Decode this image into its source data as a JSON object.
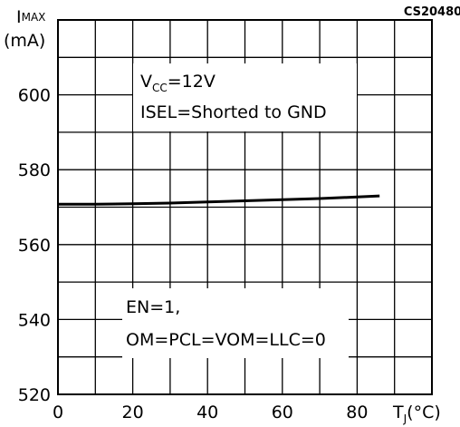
{
  "chart_data": {
    "type": "line",
    "figure_code": "CS20480",
    "ylabel": {
      "main": "I",
      "sub": "MAX",
      "unit": "(mA)"
    },
    "xlabel": {
      "main": "T",
      "sub": "J",
      "unit": "(°C)"
    },
    "xlim": [
      0,
      100
    ],
    "ylim": [
      520,
      620
    ],
    "x_ticks": [
      0,
      20,
      40,
      60,
      80
    ],
    "y_ticks": [
      520,
      540,
      560,
      580,
      600
    ],
    "x_tick_labels": [
      "0",
      "20",
      "40",
      "60",
      "80"
    ],
    "y_tick_labels": [
      "520",
      "540",
      "560",
      "580",
      "600"
    ],
    "grid": true,
    "grid_step_x": 10,
    "grid_step_y": 10,
    "series": [
      {
        "x": [
          0,
          10,
          20,
          30,
          40,
          50,
          60,
          70,
          80,
          86
        ],
        "values": [
          570.8,
          570.8,
          570.9,
          571.1,
          571.4,
          571.7,
          572.0,
          572.3,
          572.7,
          573.0
        ]
      }
    ],
    "annotations": [
      {
        "id": "vcc",
        "lines": [
          [
            {
              "t": "V"
            },
            {
              "t": "CC",
              "sub": true
            },
            {
              "t": "=12V"
            }
          ],
          [
            {
              "t": "ISEL=Shorted to GND"
            }
          ]
        ]
      },
      {
        "id": "en",
        "lines": [
          [
            {
              "t": "EN=1,"
            }
          ],
          [
            {
              "t": "OM=PCL=VOM=LLC=0"
            }
          ]
        ]
      }
    ]
  }
}
